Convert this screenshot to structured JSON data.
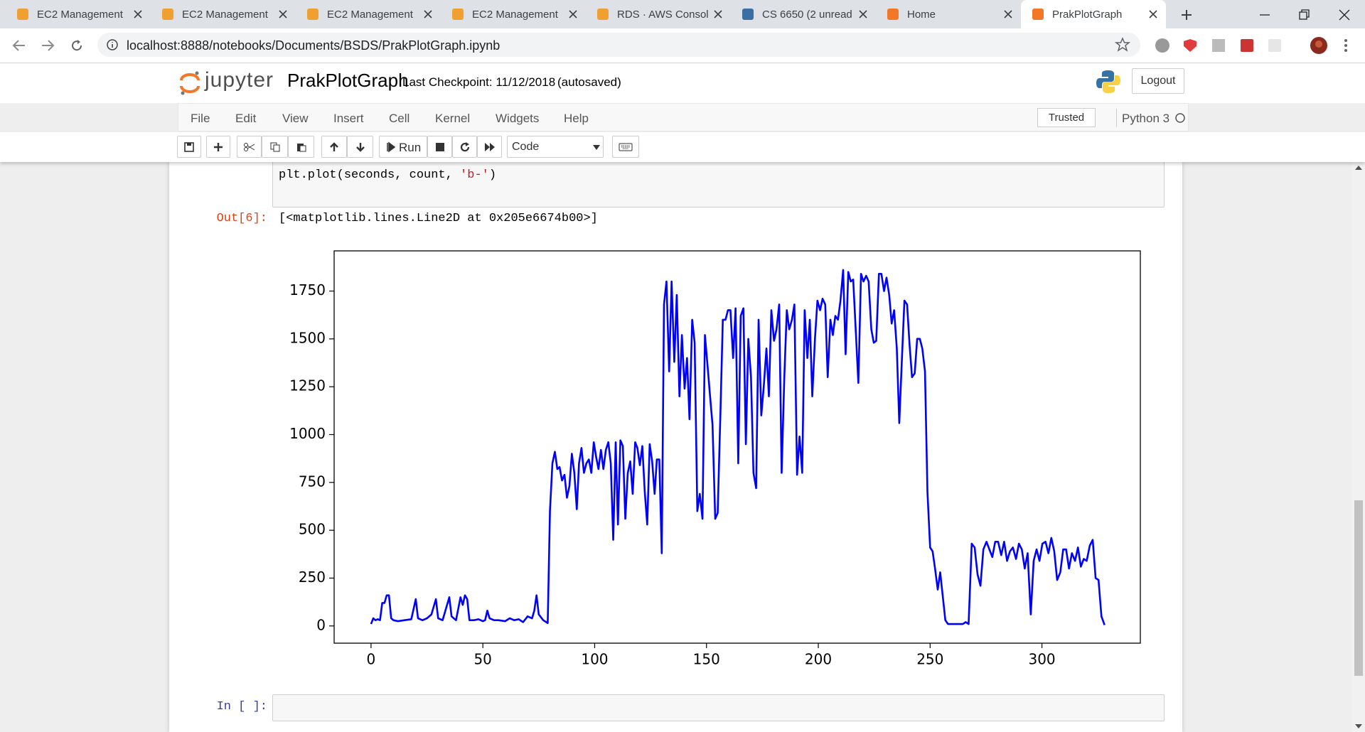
{
  "browser": {
    "tabs": [
      "EC2 Management",
      "EC2 Management",
      "EC2 Management",
      "EC2 Management",
      "RDS · AWS Consol",
      "CS 6650 (2 unread",
      "Home",
      "PrakPlotGraph"
    ],
    "url": "localhost:8888/notebooks/Documents/BSDS/PrakPlotGraph.ipynb"
  },
  "notebook": {
    "logo": "jupyter",
    "name": "PrakPlotGraph",
    "checkpoint": "Last Checkpoint: 11/12/2018",
    "autosave": "(autosaved)",
    "logout": "Logout",
    "menu": [
      "File",
      "Edit",
      "View",
      "Insert",
      "Cell",
      "Kernel",
      "Widgets",
      "Help"
    ],
    "trusted": "Trusted",
    "kernel": "Python 3",
    "run": "Run",
    "cell_type": "Code"
  },
  "cells": [
    {
      "code": [
        "plt.plot(seconds, count, ",
        "'b-'",
        ")"
      ],
      "out_prompt": "Out[6]:",
      "output": "[<matplotlib.lines.Line2D at 0x205e6674b00>]"
    },
    {
      "in_prompt": "In [ ]:"
    }
  ],
  "chart_data": {
    "type": "line",
    "color": "#0000ff",
    "x": [
      0,
      1,
      2,
      3,
      4,
      5,
      6,
      7,
      8,
      9,
      10,
      12,
      15,
      18,
      20,
      21,
      23,
      25,
      27,
      29,
      30,
      32,
      34,
      35,
      36,
      38,
      40,
      41,
      42,
      43,
      44,
      46,
      48,
      50,
      51,
      52,
      53,
      55,
      57,
      60,
      62,
      64,
      66,
      68,
      70,
      72,
      73,
      74,
      75,
      77,
      79,
      80,
      81.1,
      82.2,
      83.3,
      84.3,
      85.4,
      86.5,
      87.6,
      88.7,
      89.8,
      90.9,
      92,
      93,
      94.1,
      95.2,
      96.3,
      97.4,
      98.5,
      99.6,
      100.7,
      101.7,
      102.8,
      103.9,
      105,
      106.1,
      107.2,
      108.3,
      109.4,
      110.4,
      111.5,
      112.6,
      113.7,
      114.8,
      115.9,
      117,
      118.1,
      119.1,
      120.2,
      121.3,
      122.4,
      123.5,
      124.6,
      125.7,
      126.8,
      127.8,
      128.9,
      130,
      131,
      132.1,
      133.3,
      134.4,
      135.6,
      136.7,
      137.9,
      139,
      140.2,
      141.3,
      142.4,
      143.6,
      144.7,
      145.9,
      147,
      148.2,
      149.3,
      150.4,
      151.6,
      152.7,
      153.9,
      155,
      156.2,
      157.3,
      158.5,
      159.6,
      160.7,
      161.9,
      163,
      164.2,
      165.3,
      166.5,
      167.6,
      168.7,
      169.9,
      171,
      172.2,
      173.3,
      174.5,
      175.6,
      176.8,
      177.9,
      179,
      180.2,
      181.3,
      182.5,
      183.6,
      184.8,
      185.9,
      187,
      188.2,
      189.3,
      190.5,
      191.6,
      192.8,
      193.9,
      195.1,
      196.2,
      197.3,
      198.5,
      199.6,
      200.8,
      201.9,
      203.1,
      204.2,
      205.4,
      206.5,
      207.6,
      208.8,
      209.9,
      211.1,
      212.2,
      213.4,
      214.5,
      215.6,
      216.8,
      217.9,
      219.1,
      220.2,
      221.4,
      222.5,
      223.7,
      224.8,
      225.9,
      227.1,
      228.2,
      229.4,
      230.5,
      231.7,
      232.8,
      233.9,
      235.1,
      236.2,
      237.4,
      238.5,
      239.7,
      240.8,
      241.9,
      243.1,
      244.2,
      245.4,
      246.5,
      247.7,
      248.8,
      250,
      251.1,
      252.2,
      253.4,
      254.5,
      255.7,
      256.8,
      258,
      260.6,
      264.6,
      265.9,
      267.2,
      268.6,
      269.9,
      271.2,
      272.5,
      273.8,
      275.2,
      276.5,
      277.8,
      279.1,
      280.4,
      281.8,
      283.1,
      284.4,
      285.7,
      287,
      288.4,
      289.7,
      291,
      292.3,
      293.6,
      295,
      296.3,
      297.6,
      298.9,
      300.2,
      301.6,
      302.9,
      304.2,
      305.5,
      306.8,
      308.2,
      309.5,
      310.8,
      312.1,
      313.4,
      314.8,
      316.1,
      317.4,
      318.7,
      320,
      321.4,
      322.7,
      324,
      325.3,
      326.6,
      328
    ],
    "values": [
      10,
      40,
      30,
      35,
      30,
      120,
      120,
      160,
      160,
      40,
      30,
      25,
      30,
      35,
      140,
      40,
      30,
      40,
      60,
      140,
      40,
      30,
      110,
      150,
      50,
      30,
      150,
      110,
      160,
      140,
      30,
      30,
      35,
      25,
      30,
      80,
      40,
      30,
      30,
      25,
      40,
      30,
      35,
      20,
      50,
      40,
      80,
      160,
      60,
      30,
      15,
      600,
      850,
      910,
      820,
      830,
      760,
      790,
      670,
      730,
      900,
      800,
      610,
      850,
      930,
      800,
      850,
      870,
      800,
      960,
      880,
      820,
      920,
      820,
      920,
      960,
      850,
      450,
      960,
      530,
      970,
      940,
      560,
      800,
      860,
      690,
      960,
      930,
      840,
      940,
      700,
      530,
      950,
      860,
      690,
      870,
      870,
      380,
      1680,
      1800,
      1330,
      1800,
      1380,
      1730,
      1200,
      1520,
      1240,
      1400,
      1080,
      1600,
      1480,
      600,
      690,
      560,
      1520,
      1370,
      1200,
      1050,
      560,
      590,
      1100,
      1600,
      1600,
      1650,
      1650,
      1400,
      1660,
      850,
      1620,
      1660,
      950,
      1500,
      1300,
      800,
      720,
      1600,
      1100,
      1250,
      1450,
      1200,
      1650,
      1490,
      1550,
      1680,
      800,
      1300,
      1650,
      1550,
      1600,
      1680,
      790,
      990,
      800,
      1650,
      1400,
      1600,
      1200,
      1500,
      1700,
      1650,
      1710,
      1680,
      1300,
      1600,
      1520,
      1620,
      1600,
      1700,
      1860,
      1420,
      1850,
      1800,
      1810,
      1530,
      1270,
      1840,
      1800,
      1830,
      1800,
      1550,
      1480,
      1490,
      1840,
      1840,
      1750,
      1820,
      1730,
      1580,
      1650,
      1450,
      1060,
      1400,
      1700,
      1680,
      1470,
      1300,
      1320,
      1500,
      1500,
      1450,
      1330,
      700,
      410,
      390,
      300,
      190,
      280,
      150,
      30,
      10,
      10,
      10,
      20,
      10,
      430,
      410,
      270,
      210,
      400,
      440,
      400,
      360,
      440,
      440,
      370,
      440,
      340,
      390,
      410,
      350,
      430,
      400,
      300,
      380,
      60,
      340,
      400,
      340,
      430,
      440,
      380,
      460,
      390,
      240,
      280,
      400,
      400,
      300,
      380,
      340,
      410,
      310,
      350,
      340,
      420,
      450,
      250,
      240,
      50,
      5
    ],
    "xlim": [
      -16.5,
      344
    ],
    "ylim": [
      -90,
      1960
    ],
    "xticks": [
      0,
      50,
      100,
      150,
      200,
      250,
      300
    ],
    "yticks": [
      0,
      250,
      500,
      750,
      1000,
      1250,
      1500,
      1750
    ]
  }
}
